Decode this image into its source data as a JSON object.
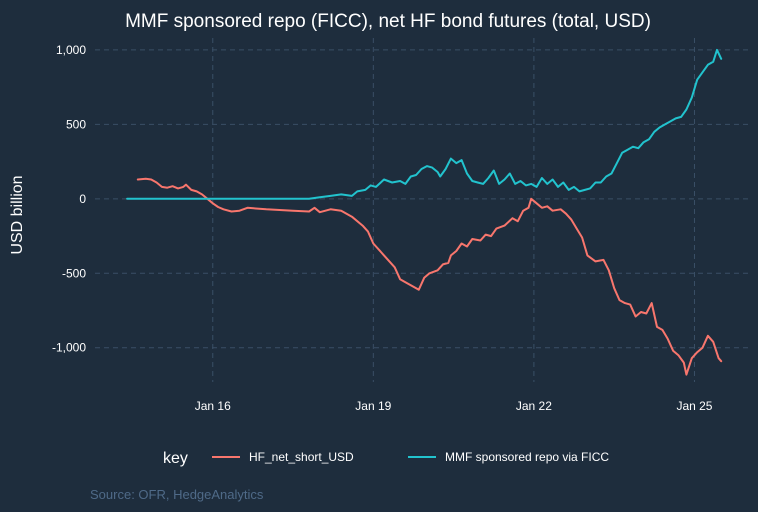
{
  "chart_data": {
    "type": "line",
    "title": "MMF sponsored repo (FICC), net HF bond futures (total, USD)",
    "ylabel": "USD billion",
    "xlabel": "",
    "x_ticks": [
      {
        "label": "Jan 16",
        "value": 2016.0
      },
      {
        "label": "Jan 19",
        "value": 2019.0
      },
      {
        "label": "Jan 22",
        "value": 2022.0
      },
      {
        "label": "Jan 25",
        "value": 2025.0
      }
    ],
    "y_ticks": [
      {
        "label": "1,000",
        "value": 1000
      },
      {
        "label": "500",
        "value": 500
      },
      {
        "label": "0",
        "value": 0
      },
      {
        "label": "-500",
        "value": -500
      },
      {
        "label": "-1,000",
        "value": -1000
      }
    ],
    "xlim": [
      2013.8,
      2026.0
    ],
    "ylim": [
      -1230,
      1080
    ],
    "grid": true,
    "legend": {
      "title": "key",
      "placement": "bottom"
    },
    "colors": {
      "HF_net_short_USD": "#f8766d",
      "MMF sponsored repo via FICC": "#22c3ce"
    },
    "series": [
      {
        "name": "HF_net_short_USD",
        "color": "#f8766d",
        "points": [
          [
            2014.6,
            130
          ],
          [
            2014.75,
            135
          ],
          [
            2014.85,
            130
          ],
          [
            2014.95,
            110
          ],
          [
            2015.05,
            80
          ],
          [
            2015.15,
            75
          ],
          [
            2015.25,
            85
          ],
          [
            2015.35,
            70
          ],
          [
            2015.45,
            80
          ],
          [
            2015.5,
            95
          ],
          [
            2015.6,
            60
          ],
          [
            2015.7,
            50
          ],
          [
            2015.8,
            30
          ],
          [
            2015.9,
            0
          ],
          [
            2016.0,
            -30
          ],
          [
            2016.1,
            -55
          ],
          [
            2016.2,
            -70
          ],
          [
            2016.35,
            -85
          ],
          [
            2016.5,
            -80
          ],
          [
            2016.65,
            -60
          ],
          [
            2017.0,
            -70
          ],
          [
            2017.5,
            -80
          ],
          [
            2017.8,
            -85
          ],
          [
            2017.9,
            -60
          ],
          [
            2018.0,
            -90
          ],
          [
            2018.2,
            -70
          ],
          [
            2018.4,
            -80
          ],
          [
            2018.6,
            -120
          ],
          [
            2018.8,
            -180
          ],
          [
            2018.9,
            -220
          ],
          [
            2019.0,
            -300
          ],
          [
            2019.2,
            -380
          ],
          [
            2019.4,
            -460
          ],
          [
            2019.5,
            -540
          ],
          [
            2019.6,
            -560
          ],
          [
            2019.75,
            -590
          ],
          [
            2019.85,
            -610
          ],
          [
            2019.95,
            -530
          ],
          [
            2020.05,
            -500
          ],
          [
            2020.2,
            -480
          ],
          [
            2020.3,
            -440
          ],
          [
            2020.4,
            -430
          ],
          [
            2020.45,
            -380
          ],
          [
            2020.55,
            -350
          ],
          [
            2020.65,
            -300
          ],
          [
            2020.75,
            -320
          ],
          [
            2020.85,
            -270
          ],
          [
            2021.0,
            -280
          ],
          [
            2021.1,
            -240
          ],
          [
            2021.2,
            -250
          ],
          [
            2021.3,
            -200
          ],
          [
            2021.45,
            -180
          ],
          [
            2021.6,
            -130
          ],
          [
            2021.7,
            -150
          ],
          [
            2021.8,
            -80
          ],
          [
            2021.9,
            -60
          ],
          [
            2021.95,
            0
          ],
          [
            2022.05,
            -30
          ],
          [
            2022.15,
            -60
          ],
          [
            2022.25,
            -50
          ],
          [
            2022.35,
            -80
          ],
          [
            2022.5,
            -70
          ],
          [
            2022.6,
            -100
          ],
          [
            2022.7,
            -140
          ],
          [
            2022.8,
            -200
          ],
          [
            2022.9,
            -260
          ],
          [
            2023.0,
            -380
          ],
          [
            2023.15,
            -420
          ],
          [
            2023.3,
            -410
          ],
          [
            2023.4,
            -480
          ],
          [
            2023.5,
            -600
          ],
          [
            2023.6,
            -680
          ],
          [
            2023.7,
            -700
          ],
          [
            2023.8,
            -710
          ],
          [
            2023.9,
            -790
          ],
          [
            2024.0,
            -760
          ],
          [
            2024.1,
            -770
          ],
          [
            2024.2,
            -700
          ],
          [
            2024.3,
            -860
          ],
          [
            2024.4,
            -880
          ],
          [
            2024.5,
            -940
          ],
          [
            2024.6,
            -1020
          ],
          [
            2024.7,
            -1050
          ],
          [
            2024.8,
            -1100
          ],
          [
            2024.85,
            -1180
          ],
          [
            2024.95,
            -1070
          ],
          [
            2025.05,
            -1030
          ],
          [
            2025.15,
            -1000
          ],
          [
            2025.25,
            -920
          ],
          [
            2025.35,
            -960
          ],
          [
            2025.45,
            -1070
          ],
          [
            2025.5,
            -1090
          ]
        ]
      },
      {
        "name": "MMF sponsored repo via FICC",
        "color": "#22c3ce",
        "points": [
          [
            2014.4,
            0
          ],
          [
            2016.0,
            0
          ],
          [
            2017.5,
            0
          ],
          [
            2017.8,
            0
          ],
          [
            2018.0,
            10
          ],
          [
            2018.2,
            20
          ],
          [
            2018.4,
            30
          ],
          [
            2018.6,
            20
          ],
          [
            2018.7,
            50
          ],
          [
            2018.85,
            60
          ],
          [
            2018.95,
            90
          ],
          [
            2019.05,
            80
          ],
          [
            2019.2,
            130
          ],
          [
            2019.35,
            110
          ],
          [
            2019.5,
            120
          ],
          [
            2019.6,
            100
          ],
          [
            2019.7,
            150
          ],
          [
            2019.8,
            160
          ],
          [
            2019.9,
            200
          ],
          [
            2020.0,
            220
          ],
          [
            2020.1,
            210
          ],
          [
            2020.2,
            180
          ],
          [
            2020.25,
            150
          ],
          [
            2020.35,
            200
          ],
          [
            2020.45,
            270
          ],
          [
            2020.55,
            240
          ],
          [
            2020.65,
            260
          ],
          [
            2020.75,
            170
          ],
          [
            2020.85,
            120
          ],
          [
            2020.95,
            110
          ],
          [
            2021.05,
            100
          ],
          [
            2021.15,
            140
          ],
          [
            2021.25,
            190
          ],
          [
            2021.35,
            100
          ],
          [
            2021.45,
            130
          ],
          [
            2021.55,
            170
          ],
          [
            2021.65,
            100
          ],
          [
            2021.75,
            120
          ],
          [
            2021.85,
            90
          ],
          [
            2021.95,
            100
          ],
          [
            2022.05,
            80
          ],
          [
            2022.15,
            140
          ],
          [
            2022.25,
            100
          ],
          [
            2022.35,
            130
          ],
          [
            2022.45,
            80
          ],
          [
            2022.55,
            110
          ],
          [
            2022.65,
            60
          ],
          [
            2022.75,
            80
          ],
          [
            2022.85,
            50
          ],
          [
            2022.95,
            60
          ],
          [
            2023.05,
            70
          ],
          [
            2023.15,
            110
          ],
          [
            2023.25,
            110
          ],
          [
            2023.35,
            150
          ],
          [
            2023.45,
            170
          ],
          [
            2023.55,
            240
          ],
          [
            2023.65,
            310
          ],
          [
            2023.75,
            330
          ],
          [
            2023.85,
            350
          ],
          [
            2023.95,
            340
          ],
          [
            2024.05,
            380
          ],
          [
            2024.15,
            400
          ],
          [
            2024.25,
            450
          ],
          [
            2024.35,
            480
          ],
          [
            2024.45,
            500
          ],
          [
            2024.55,
            520
          ],
          [
            2024.65,
            540
          ],
          [
            2024.75,
            550
          ],
          [
            2024.85,
            600
          ],
          [
            2024.95,
            680
          ],
          [
            2025.05,
            800
          ],
          [
            2025.15,
            850
          ],
          [
            2025.25,
            900
          ],
          [
            2025.35,
            920
          ],
          [
            2025.42,
            1000
          ],
          [
            2025.5,
            940
          ]
        ]
      }
    ]
  },
  "source": "Source: OFR, HedgeAnalytics"
}
